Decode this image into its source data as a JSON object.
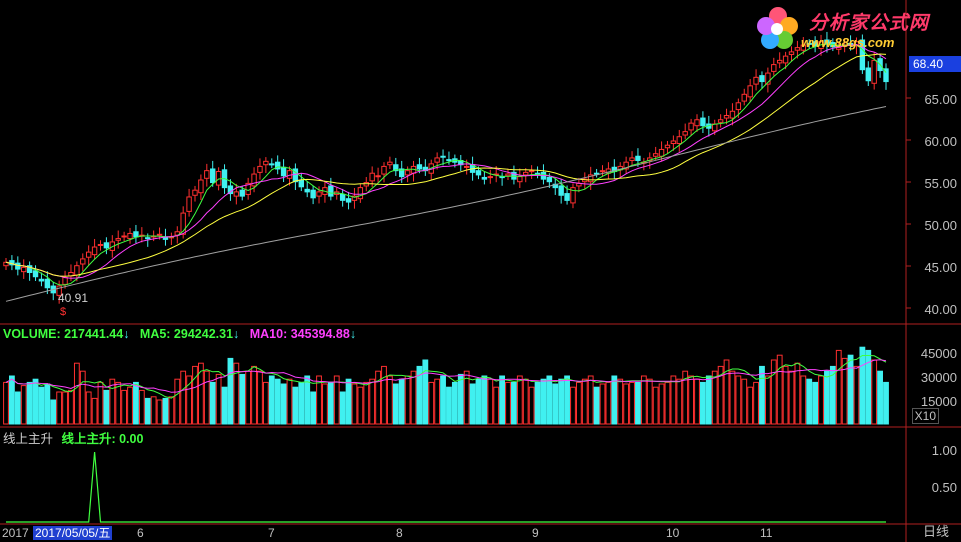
{
  "main_panel": {
    "price_axis_labels": [
      "65.00",
      "60.00",
      "55.00",
      "50.00",
      "45.00",
      "40.00"
    ],
    "current_price": "68.40",
    "low_marker": "40.91",
    "low_signal_glyph": "$"
  },
  "volume_panel": {
    "volume_label": "VOLUME: 217441.44",
    "ma5_label": "MA5: 294242.31",
    "ma10_label": "MA10: 345394.88",
    "arrow": "↓",
    "axis_labels": [
      "45000",
      "30000",
      "15000"
    ],
    "multiplier": "X10"
  },
  "indicator_panel": {
    "name": "线上主升",
    "value_label": "线上主升: 0.00",
    "axis_labels": [
      "1.00",
      "0.50"
    ]
  },
  "x_axis": {
    "year_label": "2017",
    "cursor_date": "2017/05/05/五",
    "months": [
      "6",
      "7",
      "8",
      "9",
      "10",
      "11"
    ],
    "period": "日线"
  },
  "logo": {
    "title": "分析家公式网",
    "url": "www.88gs.com"
  },
  "colors": {
    "up_candle": "#ff3030",
    "down_candle": "#40f0f0",
    "ma_white": "#ffffff",
    "ma_yellow": "#ffff40",
    "ma_magenta": "#ff40ff",
    "ma_green": "#40ff40",
    "ma_long": "#a0a0a0",
    "volume_label": "#40ff40",
    "ma5_volume": "#40ff40",
    "ma10_volume": "#ff40ff",
    "indicator_line": "#40ff40",
    "axis_line": "#b02020"
  },
  "chart_data": {
    "type": "candlestick",
    "period": "daily",
    "price_range": [
      38,
      71
    ],
    "volume_range": [
      0,
      50000
    ],
    "indicator_range": [
      0,
      1.2
    ],
    "closes": [
      44.8,
      44.5,
      44.0,
      44.2,
      43.6,
      43.1,
      42.6,
      41.8,
      41.2,
      42.0,
      43.0,
      43.6,
      44.4,
      45.2,
      46.0,
      46.6,
      46.9,
      46.5,
      47.2,
      47.6,
      47.9,
      48.2,
      47.8,
      48.0,
      47.6,
      47.9,
      48.1,
      47.5,
      47.8,
      48.4,
      50.6,
      52.5,
      53.3,
      54.5,
      55.6,
      54.2,
      55.5,
      53.6,
      52.9,
      53.1,
      52.6,
      54.1,
      55.2,
      56.1,
      56.7,
      56.4,
      55.8,
      55.0,
      55.6,
      54.3,
      53.7,
      53.1,
      52.4,
      53.1,
      53.6,
      52.6,
      53.1,
      52.1,
      51.9,
      52.6,
      53.6,
      54.2,
      55.3,
      55.0,
      56.1,
      56.6,
      55.6,
      54.9,
      55.6,
      56.1,
      55.8,
      55.6,
      56.4,
      57.1,
      57.2,
      56.8,
      56.6,
      56.3,
      56.1,
      55.4,
      55.1,
      54.6,
      54.9,
      55.2,
      54.8,
      55.2,
      54.6,
      54.9,
      55.4,
      55.6,
      55.2,
      54.6,
      54.3,
      53.6,
      52.7,
      52.1,
      53.6,
      54.1,
      54.6,
      55.1,
      55.3,
      55.6,
      55.8,
      55.5,
      56.1,
      56.6,
      57.1,
      56.8,
      56.6,
      57.1,
      57.6,
      58.1,
      58.6,
      59.1,
      59.6,
      60.2,
      61.2,
      61.6,
      60.9,
      60.6,
      61.1,
      61.6,
      62.1,
      62.6,
      63.6,
      64.6,
      65.6,
      66.6,
      66.1,
      67.1,
      68.1,
      68.6,
      69.1,
      69.6,
      70.1,
      70.4,
      70.6,
      70.3,
      70.8,
      70.5,
      70.2,
      70.1,
      70.4,
      70.6,
      70.8,
      67.5,
      66.2,
      68.6,
      67.4,
      66.1
    ],
    "volumes": [
      26000,
      30000,
      20000,
      24000,
      26000,
      28000,
      23000,
      25000,
      15000,
      20000,
      20000,
      21000,
      38000,
      33000,
      20000,
      16000,
      26000,
      21000,
      28000,
      26000,
      21000,
      23000,
      26000,
      21000,
      16000,
      17000,
      15000,
      16000,
      17000,
      28000,
      33000,
      30000,
      36000,
      38000,
      33000,
      26000,
      31000,
      23000,
      41000,
      38000,
      31000,
      33000,
      36000,
      33000,
      26000,
      30000,
      28000,
      25000,
      28000,
      23000,
      26000,
      30000,
      20000,
      30000,
      25000,
      26000,
      30000,
      20000,
      28000,
      25000,
      23000,
      26000,
      28000,
      33000,
      36000,
      30000,
      25000,
      28000,
      30000,
      33000,
      36000,
      40000,
      26000,
      28000,
      30000,
      23000,
      26000,
      31000,
      33000,
      25000,
      28000,
      30000,
      28000,
      23000,
      30000,
      26000,
      26000,
      30000,
      28000,
      23000,
      26000,
      28000,
      30000,
      25000,
      28000,
      30000,
      23000,
      26000,
      28000,
      30000,
      23000,
      25000,
      26000,
      30000,
      28000,
      25000,
      26000,
      26000,
      30000,
      28000,
      23000,
      25000,
      26000,
      30000,
      28000,
      33000,
      30000,
      28000,
      26000,
      30000,
      33000,
      36000,
      40000,
      33000,
      30000,
      28000,
      23000,
      26000,
      36000,
      30000,
      40000,
      43000,
      36000,
      33000,
      38000,
      30000,
      28000,
      26000,
      30000,
      33000,
      36000,
      46000,
      41000,
      43000,
      36000,
      48000,
      46000,
      40000,
      33000,
      26000
    ],
    "indicator_spike_index": 15,
    "indicator_spike_value": 1.0
  }
}
